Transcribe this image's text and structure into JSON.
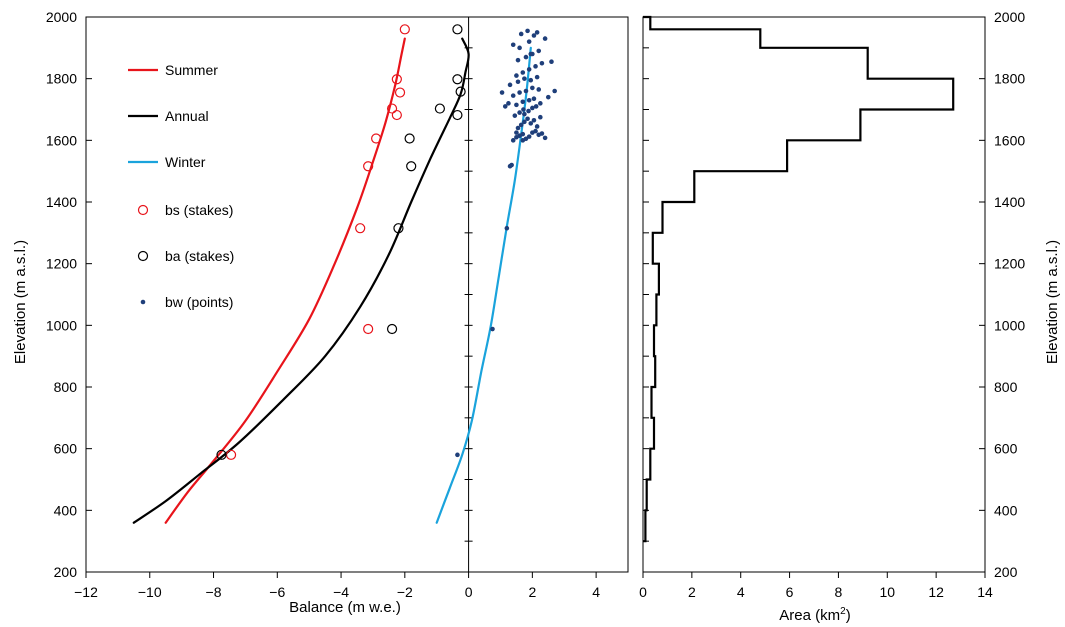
{
  "chart_data": [
    {
      "type": "line",
      "xlabel": "Balance (m w.e.)",
      "ylabel": "Elevation (m a.s.l.)",
      "xlim": [
        -12,
        5
      ],
      "ylim": [
        200,
        2000
      ],
      "xticks": [
        "−12",
        "−10",
        "−8",
        "−6",
        "−4",
        "−2",
        "0",
        "2",
        "4"
      ],
      "xtick_values": [
        -12,
        -10,
        -8,
        -6,
        -4,
        -2,
        0,
        2,
        4
      ],
      "yticks": [
        "200",
        "400",
        "600",
        "800",
        "1000",
        "1200",
        "1400",
        "1600",
        "1800",
        "2000"
      ],
      "ytick_values": [
        200,
        400,
        600,
        800,
        1000,
        1200,
        1400,
        1600,
        1800,
        2000
      ],
      "grid": false,
      "legend_position": "top-left",
      "colors": {
        "summer": "#e8141b",
        "annual": "#000000",
        "winter": "#1aa3dc",
        "points": "#1f3f7a"
      },
      "series": [
        {
          "name": "Summer",
          "kind": "line",
          "color": "#e8141b",
          "x": [
            -9.5,
            -8.8,
            -8.0,
            -7.0,
            -6.0,
            -5.0,
            -4.2,
            -3.5,
            -3.0,
            -2.6,
            -2.3,
            -2.1,
            -2.0
          ],
          "y": [
            360,
            460,
            560,
            690,
            850,
            1020,
            1200,
            1380,
            1530,
            1660,
            1780,
            1880,
            1930
          ]
        },
        {
          "name": "Annual",
          "kind": "line",
          "color": "#000000",
          "x": [
            -10.5,
            -9.5,
            -8.4,
            -7.2,
            -5.8,
            -4.5,
            -3.4,
            -2.5,
            -1.8,
            -1.2,
            -0.6,
            -0.25,
            -0.1,
            0.0,
            -0.2
          ],
          "y": [
            360,
            430,
            520,
            620,
            760,
            900,
            1060,
            1230,
            1400,
            1540,
            1670,
            1750,
            1820,
            1880,
            1930
          ]
        },
        {
          "name": "Winter",
          "kind": "line",
          "color": "#1aa3dc",
          "x": [
            -1.0,
            -0.6,
            -0.2,
            0.1,
            0.4,
            0.7,
            0.95,
            1.2,
            1.45,
            1.65,
            1.82,
            1.95
          ],
          "y": [
            360,
            470,
            580,
            690,
            850,
            1000,
            1160,
            1320,
            1470,
            1620,
            1760,
            1900
          ]
        },
        {
          "name": "bs (stakes)",
          "kind": "scatter-open",
          "color": "#e8141b",
          "x": [
            -2.0,
            -2.25,
            -2.15,
            -2.4,
            -2.25,
            -2.9,
            -3.15,
            -3.4,
            -3.15,
            -7.45
          ],
          "y": [
            1960,
            1798,
            1755,
            1703,
            1682,
            1606,
            1516,
            1315,
            988,
            580
          ]
        },
        {
          "name": "ba (stakes)",
          "kind": "scatter-open",
          "color": "#000000",
          "x": [
            -0.35,
            -0.35,
            -0.25,
            -0.9,
            -0.35,
            -1.85,
            -1.8,
            -2.2,
            -2.4,
            -7.75
          ],
          "y": [
            1960,
            1798,
            1758,
            1703,
            1682,
            1606,
            1516,
            1315,
            988,
            580
          ]
        },
        {
          "name": "bw (points)",
          "kind": "scatter-dot",
          "color": "#1f3f7a",
          "x": [
            -0.35,
            0.75,
            1.2,
            1.3,
            1.35,
            1.4,
            1.5,
            1.6,
            1.7,
            1.8,
            1.9,
            2.0,
            2.1,
            2.2,
            2.3,
            2.4,
            1.55,
            1.65,
            1.75,
            1.85,
            1.95,
            2.05,
            2.15,
            2.25,
            1.45,
            1.6,
            1.72,
            1.88,
            2.0,
            2.12,
            1.15,
            1.25,
            1.5,
            1.7,
            1.9,
            2.05,
            2.25,
            2.5,
            2.7,
            1.4,
            1.6,
            1.8,
            2.0,
            2.2,
            1.3,
            1.55,
            1.75,
            1.95,
            2.15,
            1.5,
            1.7,
            1.9,
            2.1,
            2.3,
            1.05,
            1.8,
            2.0,
            2.2,
            1.6,
            1.4,
            1.9,
            2.4,
            1.65,
            1.85,
            2.05,
            2.6,
            1.55,
            1.95,
            2.15,
            1.7,
            1.5,
            1.75
          ],
          "y": [
            580,
            988,
            1315,
            1516,
            1520,
            1600,
            1610,
            1615,
            1620,
            1605,
            1612,
            1625,
            1630,
            1618,
            1622,
            1608,
            1640,
            1650,
            1660,
            1670,
            1655,
            1665,
            1645,
            1675,
            1680,
            1690,
            1700,
            1695,
            1705,
            1710,
            1710,
            1720,
            1715,
            1725,
            1730,
            1735,
            1720,
            1740,
            1760,
            1745,
            1755,
            1760,
            1770,
            1765,
            1780,
            1790,
            1800,
            1795,
            1805,
            1810,
            1820,
            1830,
            1840,
            1850,
            1755,
            1870,
            1880,
            1890,
            1900,
            1910,
            1920,
            1930,
            1945,
            1955,
            1940,
            1855,
            1860,
            1880,
            1950,
            1600,
            1625,
            1685
          ]
        }
      ]
    },
    {
      "type": "step",
      "xlabel": "Area (km²)",
      "xlabel_main": "Area (km",
      "xlabel_sup": "2",
      "xlabel_tail": ")",
      "ylabel": "Elevation (m a.s.l.)",
      "xlim": [
        0,
        14
      ],
      "ylim": [
        200,
        2000
      ],
      "xticks": [
        "0",
        "2",
        "4",
        "6",
        "8",
        "10",
        "12",
        "14"
      ],
      "xtick_values": [
        0,
        2,
        4,
        6,
        8,
        10,
        12,
        14
      ],
      "grid": false,
      "series": [
        {
          "name": "",
          "color": "#000000",
          "bins": [
            {
              "y0": 300,
              "y1": 400,
              "area": 0.1
            },
            {
              "y0": 400,
              "y1": 500,
              "area": 0.15
            },
            {
              "y0": 500,
              "y1": 600,
              "area": 0.3
            },
            {
              "y0": 600,
              "y1": 700,
              "area": 0.45
            },
            {
              "y0": 700,
              "y1": 800,
              "area": 0.35
            },
            {
              "y0": 800,
              "y1": 900,
              "area": 0.5
            },
            {
              "y0": 900,
              "y1": 1000,
              "area": 0.45
            },
            {
              "y0": 1000,
              "y1": 1100,
              "area": 0.55
            },
            {
              "y0": 1100,
              "y1": 1200,
              "area": 0.65
            },
            {
              "y0": 1200,
              "y1": 1300,
              "area": 0.4
            },
            {
              "y0": 1300,
              "y1": 1400,
              "area": 0.8
            },
            {
              "y0": 1400,
              "y1": 1500,
              "area": 2.1
            },
            {
              "y0": 1500,
              "y1": 1600,
              "area": 5.9
            },
            {
              "y0": 1600,
              "y1": 1700,
              "area": 8.9
            },
            {
              "y0": 1700,
              "y1": 1800,
              "area": 12.7
            },
            {
              "y0": 1800,
              "y1": 1900,
              "area": 9.2
            },
            {
              "y0": 1900,
              "y1": 1960,
              "area": 4.8
            },
            {
              "y0": 1960,
              "y1": 2000,
              "area": 0.3
            }
          ]
        }
      ]
    }
  ]
}
